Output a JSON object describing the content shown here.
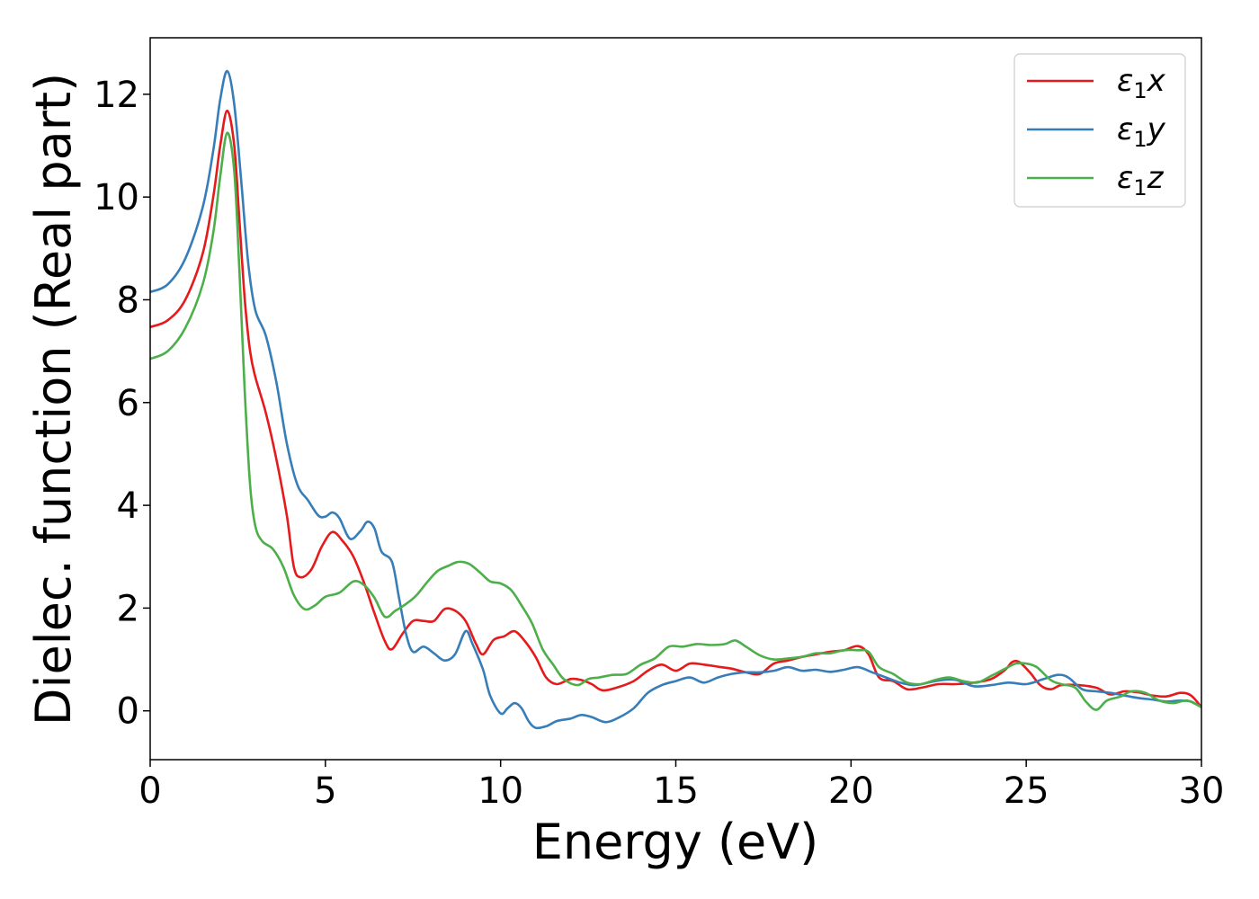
{
  "chart_data": {
    "type": "line",
    "xlabel": "Energy (eV)",
    "ylabel": "Dielec. function (Real part)",
    "xlim": [
      0,
      30
    ],
    "ylim": [
      -0.95,
      13.1
    ],
    "xticks": [
      0,
      5,
      10,
      15,
      20,
      25,
      30
    ],
    "yticks": [
      0,
      2,
      4,
      6,
      8,
      10,
      12
    ],
    "grid": false,
    "legend_position": "top-right",
    "series": [
      {
        "name": "ε1x",
        "legend_main": "ε",
        "legend_sub": "1",
        "legend_suffix": "x",
        "color": "#e41a1c",
        "points": [
          [
            0,
            7.47
          ],
          [
            0.5,
            7.6
          ],
          [
            1.0,
            8.0
          ],
          [
            1.5,
            8.9
          ],
          [
            1.8,
            10.0
          ],
          [
            2.0,
            11.0
          ],
          [
            2.2,
            11.68
          ],
          [
            2.4,
            11.0
          ],
          [
            2.55,
            9.5
          ],
          [
            2.7,
            8.0
          ],
          [
            2.85,
            7.0
          ],
          [
            3.0,
            6.5
          ],
          [
            3.3,
            5.8
          ],
          [
            3.6,
            4.9
          ],
          [
            3.9,
            3.8
          ],
          [
            4.1,
            2.8
          ],
          [
            4.3,
            2.6
          ],
          [
            4.6,
            2.75
          ],
          [
            4.9,
            3.2
          ],
          [
            5.2,
            3.48
          ],
          [
            5.5,
            3.3
          ],
          [
            5.8,
            3.0
          ],
          [
            6.1,
            2.5
          ],
          [
            6.4,
            1.9
          ],
          [
            6.7,
            1.35
          ],
          [
            6.9,
            1.2
          ],
          [
            7.2,
            1.5
          ],
          [
            7.5,
            1.75
          ],
          [
            7.8,
            1.75
          ],
          [
            8.1,
            1.75
          ],
          [
            8.4,
            1.98
          ],
          [
            8.7,
            1.95
          ],
          [
            9.0,
            1.75
          ],
          [
            9.3,
            1.3
          ],
          [
            9.5,
            1.1
          ],
          [
            9.8,
            1.38
          ],
          [
            10.1,
            1.45
          ],
          [
            10.4,
            1.55
          ],
          [
            10.7,
            1.35
          ],
          [
            11.0,
            1.05
          ],
          [
            11.3,
            0.65
          ],
          [
            11.6,
            0.52
          ],
          [
            12.0,
            0.62
          ],
          [
            12.3,
            0.6
          ],
          [
            12.6,
            0.52
          ],
          [
            12.9,
            0.4
          ],
          [
            13.3,
            0.45
          ],
          [
            13.8,
            0.58
          ],
          [
            14.2,
            0.78
          ],
          [
            14.6,
            0.9
          ],
          [
            15.0,
            0.78
          ],
          [
            15.4,
            0.92
          ],
          [
            15.8,
            0.9
          ],
          [
            16.2,
            0.86
          ],
          [
            16.6,
            0.82
          ],
          [
            17.0,
            0.75
          ],
          [
            17.4,
            0.72
          ],
          [
            17.8,
            0.92
          ],
          [
            18.2,
            0.98
          ],
          [
            18.6,
            1.05
          ],
          [
            19.0,
            1.1
          ],
          [
            19.4,
            1.15
          ],
          [
            19.8,
            1.18
          ],
          [
            20.2,
            1.26
          ],
          [
            20.5,
            1.1
          ],
          [
            20.8,
            0.65
          ],
          [
            21.2,
            0.58
          ],
          [
            21.6,
            0.42
          ],
          [
            22.0,
            0.45
          ],
          [
            22.5,
            0.52
          ],
          [
            23.0,
            0.52
          ],
          [
            23.5,
            0.55
          ],
          [
            24.0,
            0.62
          ],
          [
            24.4,
            0.8
          ],
          [
            24.6,
            0.95
          ],
          [
            24.8,
            0.95
          ],
          [
            25.1,
            0.75
          ],
          [
            25.4,
            0.5
          ],
          [
            25.7,
            0.42
          ],
          [
            26.0,
            0.5
          ],
          [
            26.5,
            0.5
          ],
          [
            27.0,
            0.45
          ],
          [
            27.4,
            0.32
          ],
          [
            27.8,
            0.38
          ],
          [
            28.2,
            0.36
          ],
          [
            28.6,
            0.3
          ],
          [
            29.0,
            0.28
          ],
          [
            29.4,
            0.35
          ],
          [
            29.7,
            0.3
          ],
          [
            30.0,
            0.07
          ]
        ]
      },
      {
        "name": "ε1y",
        "legend_main": "ε",
        "legend_sub": "1",
        "legend_suffix": "y",
        "color": "#377eb8",
        "points": [
          [
            0,
            8.15
          ],
          [
            0.5,
            8.3
          ],
          [
            1.0,
            8.8
          ],
          [
            1.5,
            9.8
          ],
          [
            1.8,
            10.9
          ],
          [
            2.0,
            11.9
          ],
          [
            2.2,
            12.45
          ],
          [
            2.4,
            11.8
          ],
          [
            2.6,
            10.3
          ],
          [
            2.8,
            8.7
          ],
          [
            3.0,
            7.8
          ],
          [
            3.3,
            7.3
          ],
          [
            3.6,
            6.4
          ],
          [
            3.9,
            5.2
          ],
          [
            4.2,
            4.4
          ],
          [
            4.5,
            4.1
          ],
          [
            4.8,
            3.8
          ],
          [
            5.0,
            3.78
          ],
          [
            5.2,
            3.86
          ],
          [
            5.4,
            3.75
          ],
          [
            5.7,
            3.35
          ],
          [
            6.0,
            3.5
          ],
          [
            6.2,
            3.68
          ],
          [
            6.4,
            3.55
          ],
          [
            6.6,
            3.1
          ],
          [
            6.9,
            2.9
          ],
          [
            7.1,
            2.2
          ],
          [
            7.3,
            1.5
          ],
          [
            7.5,
            1.15
          ],
          [
            7.8,
            1.25
          ],
          [
            8.1,
            1.12
          ],
          [
            8.4,
            0.98
          ],
          [
            8.7,
            1.1
          ],
          [
            9.0,
            1.55
          ],
          [
            9.2,
            1.3
          ],
          [
            9.5,
            0.8
          ],
          [
            9.7,
            0.3
          ],
          [
            10.0,
            -0.05
          ],
          [
            10.2,
            0.05
          ],
          [
            10.4,
            0.15
          ],
          [
            10.6,
            0.05
          ],
          [
            10.8,
            -0.2
          ],
          [
            11.0,
            -0.33
          ],
          [
            11.3,
            -0.3
          ],
          [
            11.6,
            -0.2
          ],
          [
            12.0,
            -0.15
          ],
          [
            12.3,
            -0.08
          ],
          [
            12.6,
            -0.12
          ],
          [
            13.0,
            -0.22
          ],
          [
            13.4,
            -0.12
          ],
          [
            13.8,
            0.05
          ],
          [
            14.2,
            0.35
          ],
          [
            14.6,
            0.5
          ],
          [
            15.0,
            0.58
          ],
          [
            15.4,
            0.65
          ],
          [
            15.8,
            0.55
          ],
          [
            16.2,
            0.65
          ],
          [
            16.6,
            0.72
          ],
          [
            17.0,
            0.75
          ],
          [
            17.4,
            0.75
          ],
          [
            17.8,
            0.78
          ],
          [
            18.2,
            0.85
          ],
          [
            18.6,
            0.78
          ],
          [
            19.0,
            0.8
          ],
          [
            19.4,
            0.76
          ],
          [
            19.8,
            0.8
          ],
          [
            20.2,
            0.85
          ],
          [
            20.6,
            0.75
          ],
          [
            21.0,
            0.65
          ],
          [
            21.4,
            0.55
          ],
          [
            21.8,
            0.5
          ],
          [
            22.2,
            0.55
          ],
          [
            22.6,
            0.6
          ],
          [
            23.0,
            0.6
          ],
          [
            23.5,
            0.48
          ],
          [
            24.0,
            0.5
          ],
          [
            24.5,
            0.55
          ],
          [
            25.0,
            0.52
          ],
          [
            25.5,
            0.62
          ],
          [
            25.9,
            0.7
          ],
          [
            26.2,
            0.65
          ],
          [
            26.6,
            0.42
          ],
          [
            27.0,
            0.38
          ],
          [
            27.4,
            0.35
          ],
          [
            27.8,
            0.3
          ],
          [
            28.2,
            0.25
          ],
          [
            28.6,
            0.22
          ],
          [
            29.0,
            0.18
          ],
          [
            29.4,
            0.2
          ],
          [
            29.7,
            0.18
          ],
          [
            30.0,
            0.07
          ]
        ]
      },
      {
        "name": "ε1z",
        "legend_main": "ε",
        "legend_sub": "1",
        "legend_suffix": "z",
        "color": "#4daf4a",
        "points": [
          [
            0,
            6.85
          ],
          [
            0.5,
            7.0
          ],
          [
            1.0,
            7.45
          ],
          [
            1.5,
            8.3
          ],
          [
            1.8,
            9.3
          ],
          [
            2.0,
            10.4
          ],
          [
            2.2,
            11.25
          ],
          [
            2.4,
            10.5
          ],
          [
            2.55,
            8.5
          ],
          [
            2.7,
            6.2
          ],
          [
            2.85,
            4.4
          ],
          [
            3.0,
            3.6
          ],
          [
            3.2,
            3.3
          ],
          [
            3.5,
            3.15
          ],
          [
            3.8,
            2.8
          ],
          [
            4.1,
            2.25
          ],
          [
            4.4,
            1.98
          ],
          [
            4.7,
            2.05
          ],
          [
            5.0,
            2.22
          ],
          [
            5.4,
            2.3
          ],
          [
            5.8,
            2.52
          ],
          [
            6.1,
            2.45
          ],
          [
            6.4,
            2.2
          ],
          [
            6.7,
            1.83
          ],
          [
            7.0,
            1.95
          ],
          [
            7.3,
            2.08
          ],
          [
            7.6,
            2.25
          ],
          [
            7.9,
            2.5
          ],
          [
            8.2,
            2.72
          ],
          [
            8.5,
            2.82
          ],
          [
            8.8,
            2.9
          ],
          [
            9.1,
            2.86
          ],
          [
            9.4,
            2.7
          ],
          [
            9.7,
            2.52
          ],
          [
            10.0,
            2.48
          ],
          [
            10.3,
            2.35
          ],
          [
            10.6,
            2.05
          ],
          [
            10.9,
            1.7
          ],
          [
            11.2,
            1.2
          ],
          [
            11.5,
            0.9
          ],
          [
            11.8,
            0.62
          ],
          [
            12.2,
            0.5
          ],
          [
            12.5,
            0.62
          ],
          [
            12.8,
            0.65
          ],
          [
            13.2,
            0.7
          ],
          [
            13.6,
            0.72
          ],
          [
            14.0,
            0.9
          ],
          [
            14.4,
            1.02
          ],
          [
            14.8,
            1.25
          ],
          [
            15.2,
            1.25
          ],
          [
            15.6,
            1.3
          ],
          [
            16.0,
            1.28
          ],
          [
            16.4,
            1.3
          ],
          [
            16.7,
            1.37
          ],
          [
            17.0,
            1.25
          ],
          [
            17.4,
            1.08
          ],
          [
            17.8,
            1.0
          ],
          [
            18.2,
            1.02
          ],
          [
            18.6,
            1.05
          ],
          [
            19.0,
            1.12
          ],
          [
            19.4,
            1.12
          ],
          [
            19.8,
            1.18
          ],
          [
            20.2,
            1.18
          ],
          [
            20.5,
            1.15
          ],
          [
            20.8,
            0.85
          ],
          [
            21.2,
            0.72
          ],
          [
            21.6,
            0.55
          ],
          [
            22.0,
            0.52
          ],
          [
            22.4,
            0.6
          ],
          [
            22.8,
            0.65
          ],
          [
            23.2,
            0.58
          ],
          [
            23.6,
            0.55
          ],
          [
            24.0,
            0.68
          ],
          [
            24.4,
            0.82
          ],
          [
            24.7,
            0.92
          ],
          [
            25.0,
            0.92
          ],
          [
            25.3,
            0.85
          ],
          [
            25.7,
            0.6
          ],
          [
            26.0,
            0.52
          ],
          [
            26.4,
            0.45
          ],
          [
            26.7,
            0.18
          ],
          [
            27.0,
            0.02
          ],
          [
            27.3,
            0.2
          ],
          [
            27.7,
            0.28
          ],
          [
            28.0,
            0.38
          ],
          [
            28.4,
            0.35
          ],
          [
            28.8,
            0.2
          ],
          [
            29.2,
            0.15
          ],
          [
            29.6,
            0.2
          ],
          [
            30.0,
            0.07
          ]
        ]
      }
    ]
  }
}
